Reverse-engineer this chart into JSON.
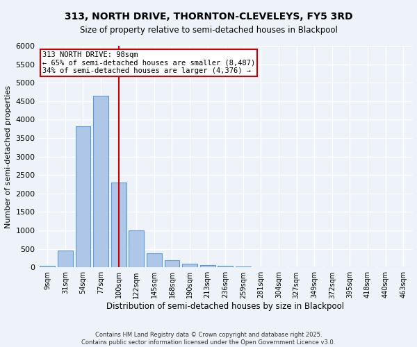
{
  "title_line1": "313, NORTH DRIVE, THORNTON-CLEVELEYS, FY5 3RD",
  "title_line2": "Size of property relative to semi-detached houses in Blackpool",
  "xlabel": "Distribution of semi-detached houses by size in Blackpool",
  "ylabel": "Number of semi-detached properties",
  "bar_labels": [
    "9sqm",
    "31sqm",
    "54sqm",
    "77sqm",
    "100sqm",
    "122sqm",
    "145sqm",
    "168sqm",
    "190sqm",
    "213sqm",
    "236sqm",
    "259sqm",
    "281sqm",
    "304sqm",
    "327sqm",
    "349sqm",
    "372sqm",
    "395sqm",
    "418sqm",
    "440sqm",
    "463sqm"
  ],
  "bar_values": [
    50,
    450,
    3820,
    4650,
    2290,
    1010,
    390,
    190,
    100,
    65,
    35,
    15,
    5,
    0,
    0,
    0,
    0,
    0,
    0,
    0,
    0
  ],
  "bar_color": "#aec6e8",
  "bar_edge_color": "#5b9bd5",
  "vline_x_index": 4,
  "vline_color": "#cc0000",
  "annotation_text": "313 NORTH DRIVE: 98sqm\n← 65% of semi-detached houses are smaller (8,487)\n34% of semi-detached houses are larger (4,376) →",
  "annotation_box_color": "#ffffff",
  "annotation_box_edge_color": "#cc0000",
  "ylim": [
    0,
    6000
  ],
  "yticks": [
    0,
    500,
    1000,
    1500,
    2000,
    2500,
    3000,
    3500,
    4000,
    4500,
    5000,
    5500,
    6000
  ],
  "footer_line1": "Contains HM Land Registry data © Crown copyright and database right 2025.",
  "footer_line2": "Contains public sector information licensed under the Open Government Licence v3.0.",
  "background_color": "#eef2f9",
  "grid_color": "#ffffff"
}
